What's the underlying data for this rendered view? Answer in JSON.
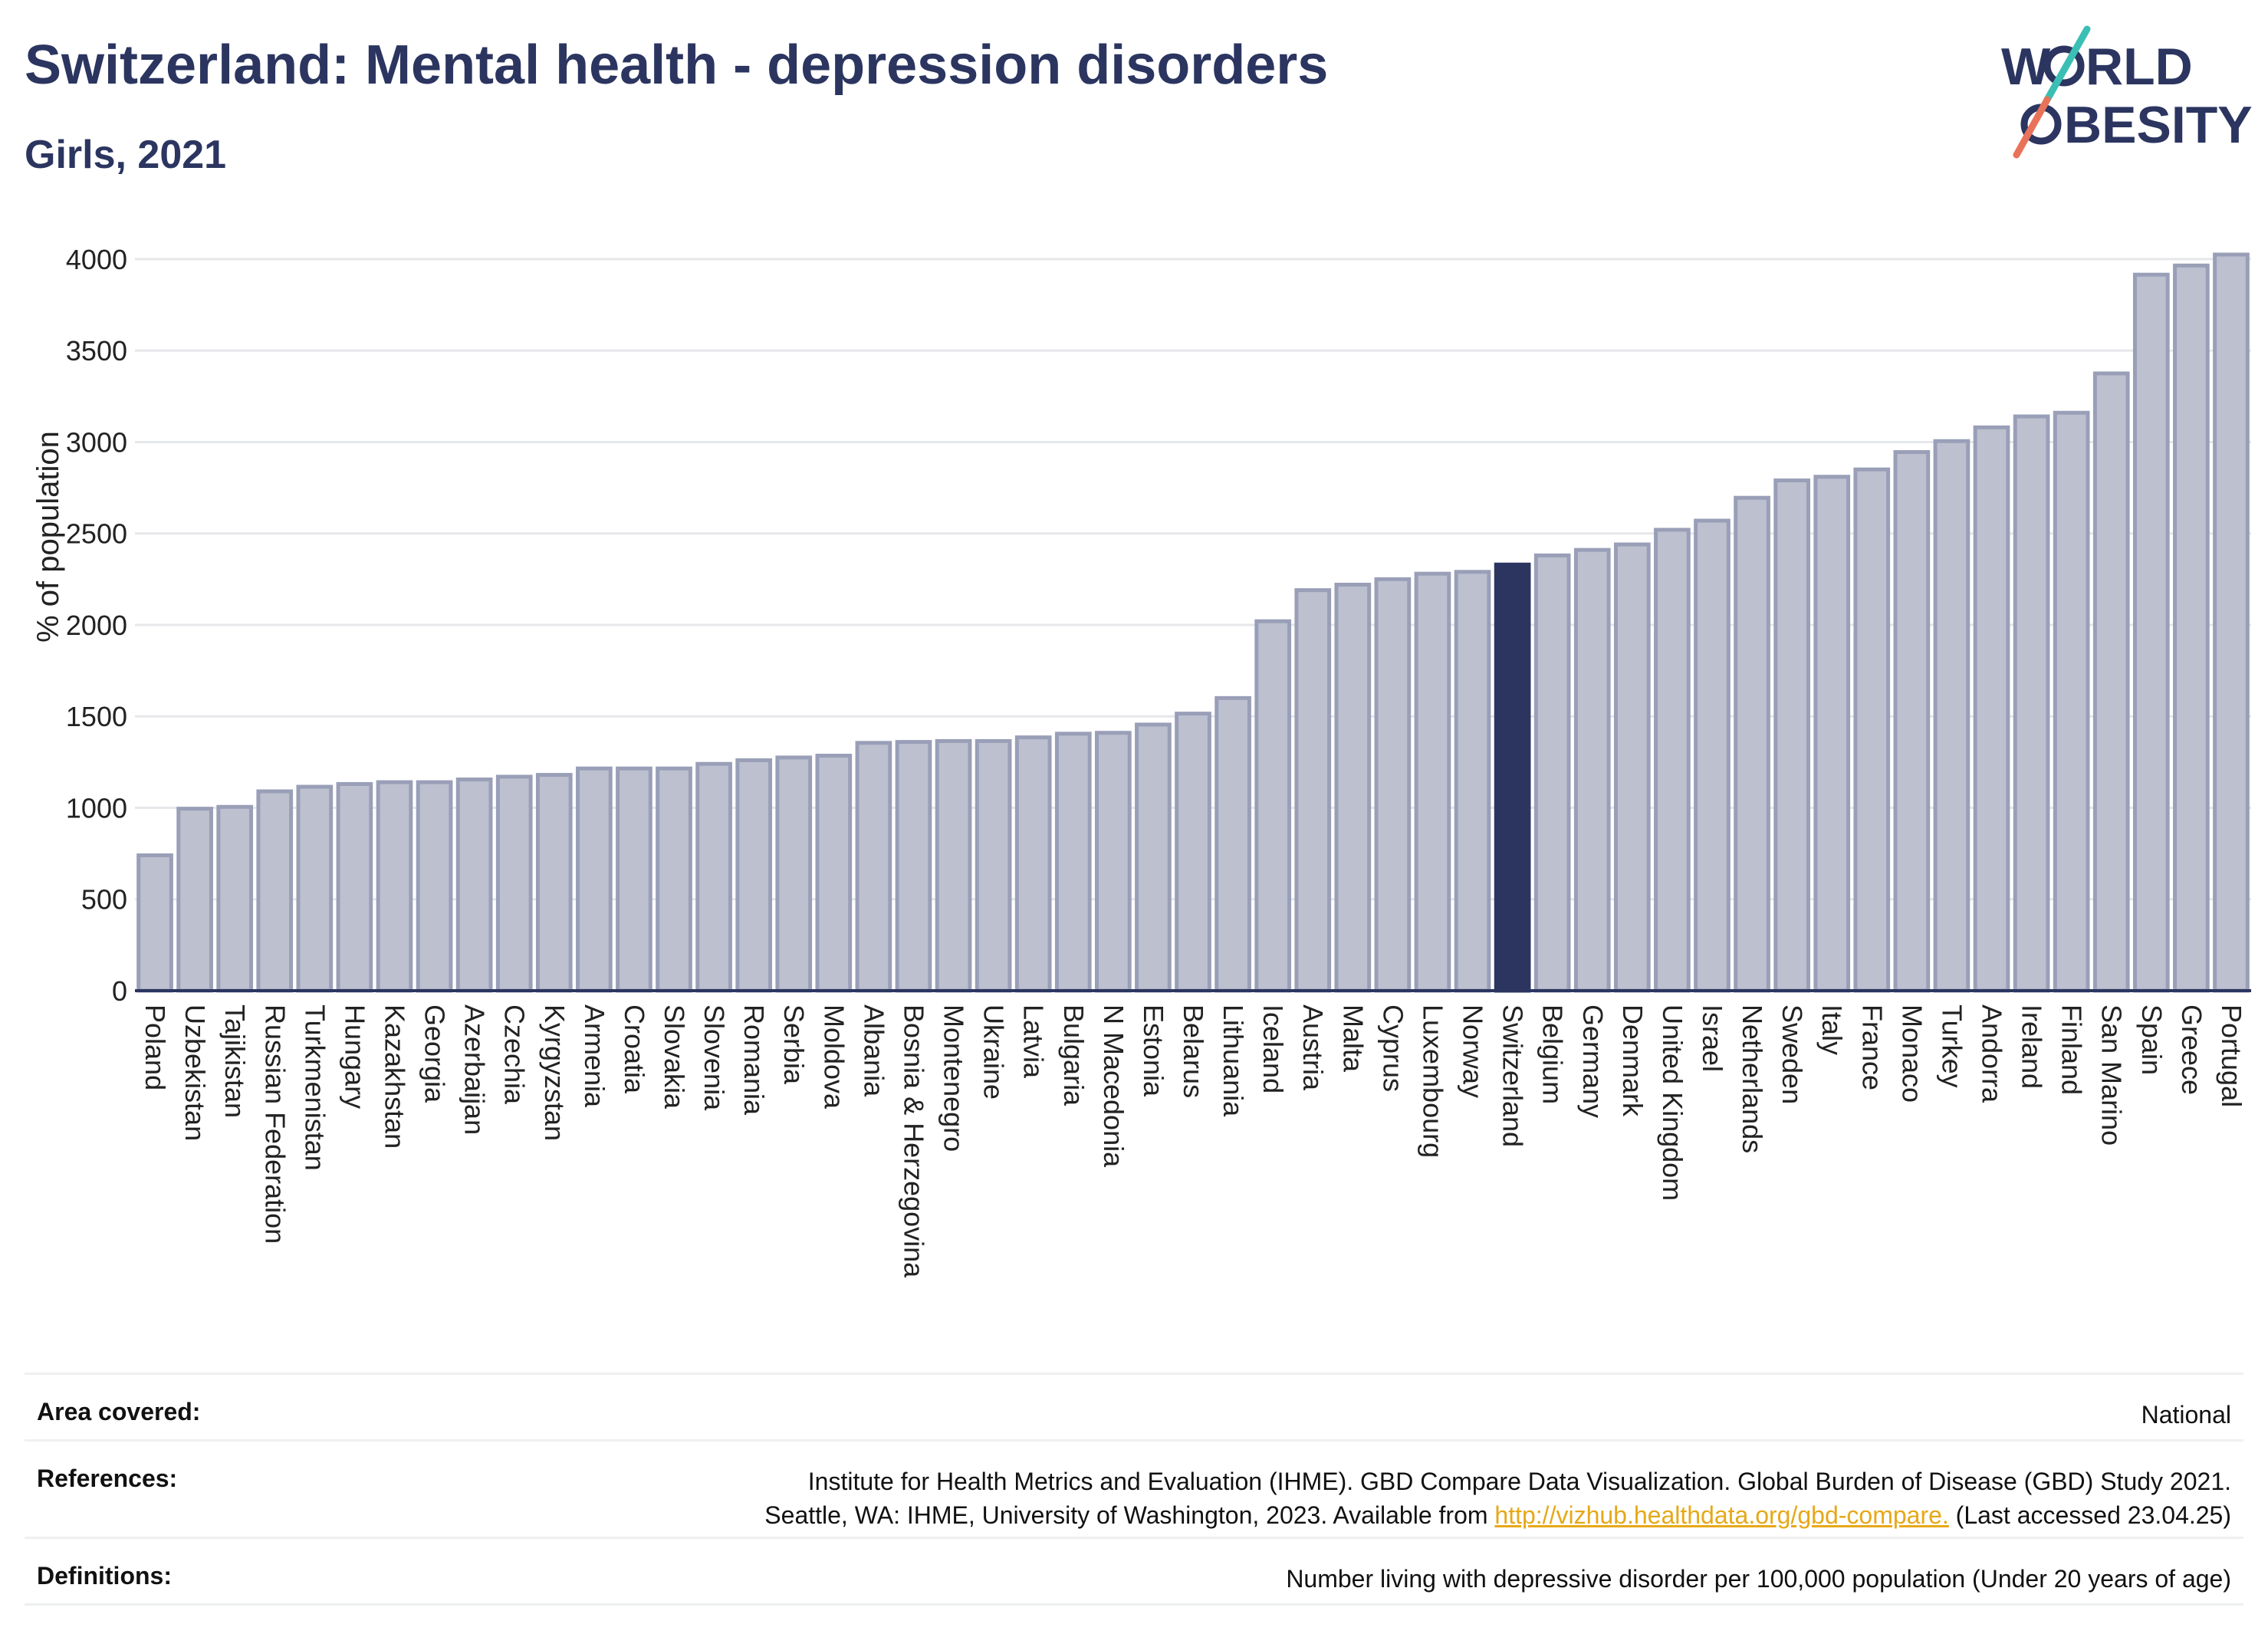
{
  "title": "Switzerland: Mental health - depression disorders",
  "subtitle": "Girls, 2021",
  "logo": {
    "line1": "W",
    "line1_rest": "RLD",
    "line2_rest": "BESITY"
  },
  "colors": {
    "highlight": "#2b3560",
    "bar": "#bcc0cf",
    "bar_edge": "#9a9fb8",
    "text": "#2b3560",
    "link": "#e6a817"
  },
  "chart_data": {
    "type": "bar",
    "ylabel": "% of population",
    "xlabel": "",
    "ylim": [
      0,
      4000
    ],
    "yticks": [
      0,
      500,
      1000,
      1500,
      2000,
      2500,
      3000,
      3500,
      4000
    ],
    "highlight": "Switzerland",
    "categories": [
      "Poland",
      "Uzbekistan",
      "Tajikistan",
      "Russian Federation",
      "Turkmenistan",
      "Hungary",
      "Kazakhstan",
      "Georgia",
      "Azerbaijan",
      "Czechia",
      "Kyrgyzstan",
      "Armenia",
      "Croatia",
      "Slovakia",
      "Slovenia",
      "Romania",
      "Serbia",
      "Moldova",
      "Albania",
      "Bosnia & Herzegovina",
      "Montenegro",
      "Ukraine",
      "Latvia",
      "Bulgaria",
      "N Macedonia",
      "Estonia",
      "Belarus",
      "Lithuania",
      "Iceland",
      "Austria",
      "Malta",
      "Cyprus",
      "Luxembourg",
      "Norway",
      "Switzerland",
      "Belgium",
      "Germany",
      "Denmark",
      "United Kingdom",
      "Israel",
      "Netherlands",
      "Sweden",
      "Italy",
      "France",
      "Monaco",
      "Turkey",
      "Andorra",
      "Ireland",
      "Finland",
      "San Marino",
      "Spain",
      "Greece",
      "Portugal"
    ],
    "values": [
      740,
      995,
      1005,
      1090,
      1115,
      1130,
      1140,
      1140,
      1155,
      1170,
      1180,
      1215,
      1215,
      1215,
      1240,
      1260,
      1275,
      1285,
      1355,
      1360,
      1365,
      1365,
      1385,
      1405,
      1410,
      1455,
      1515,
      1600,
      2020,
      2190,
      2220,
      2250,
      2280,
      2290,
      2330,
      2380,
      2410,
      2440,
      2520,
      2570,
      2695,
      2790,
      2810,
      2850,
      2945,
      3005,
      3080,
      3140,
      3160,
      3375,
      3915,
      3965,
      4025
    ]
  },
  "info": {
    "area_label": "Area covered:",
    "area_value": "National",
    "refs_label": "References:",
    "refs_line1": "Institute for Health Metrics and Evaluation (IHME). GBD Compare Data Visualization. Global Burden of Disease (GBD) Study 2021.",
    "refs_line2_pre": "Seattle, WA: IHME, University of Washington, 2023. Available from",
    "refs_link": "http://vizhub.healthdata.org/gbd-compare.",
    "refs_line2_post": "(Last accessed 23.04.25)",
    "defs_label": "Definitions:",
    "defs_value": "Number living with depressive disorder per 100,000 population (Under 20 years of age)"
  }
}
